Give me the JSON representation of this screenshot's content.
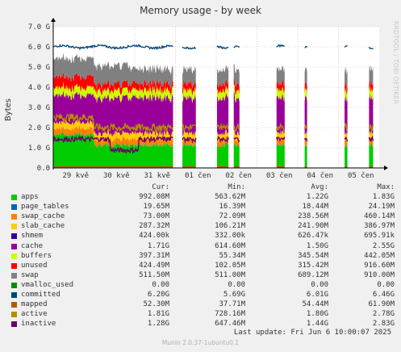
{
  "chart_data": {
    "type": "area",
    "title": "Memory usage - by week",
    "ylabel": "Bytes",
    "side_text": "RRDTOOL / TOBI OETIKER",
    "ylim": [
      0,
      7000000000
    ],
    "yticks": [
      "0.0",
      "1.0 G",
      "2.0 G",
      "3.0 G",
      "4.0 G",
      "5.0 G",
      "6.0 G",
      "7.0 G"
    ],
    "xticks": [
      "29 kvě",
      "30 kvě",
      "31 kvě",
      "01 čen",
      "02 čen",
      "03 čen",
      "04 čen",
      "05 čen"
    ],
    "x_range_days": [
      0,
      8
    ],
    "data_intervals_days": [
      [
        0,
        2.94
      ],
      [
        3.17,
        3.5
      ],
      [
        4.02,
        4.3
      ],
      [
        4.43,
        4.57
      ],
      [
        5.48,
        5.68
      ],
      [
        6.17,
        6.23
      ],
      [
        7.15,
        7.22
      ],
      [
        7.75,
        7.85
      ]
    ],
    "series": [
      {
        "name": "apps",
        "color": "#00cc00",
        "avg": 1.22
      },
      {
        "name": "page_tables",
        "color": "#0066b3",
        "avg": 0.018
      },
      {
        "name": "swap_cache",
        "color": "#ff8000",
        "avg": 0.239
      },
      {
        "name": "slab_cache",
        "color": "#ffcc00",
        "avg": 0.242
      },
      {
        "name": "shmem",
        "color": "#330099",
        "avg": 0.0006
      },
      {
        "name": "cache",
        "color": "#990099",
        "avg": 1.5
      },
      {
        "name": "buffers",
        "color": "#ccff00",
        "avg": 0.346
      },
      {
        "name": "unused",
        "color": "#ff0000",
        "avg": 0.315
      },
      {
        "name": "swap",
        "color": "#808080",
        "avg": 0.689
      },
      {
        "name": "vmalloc_used",
        "color": "#008f00",
        "avg": 0
      },
      {
        "name": "committed",
        "color": "#00487d",
        "avg": 6.01
      },
      {
        "name": "mapped",
        "color": "#b35a00",
        "avg": 0.054
      },
      {
        "name": "active",
        "color": "#b38f00",
        "avg": 1.8
      },
      {
        "name": "inactive",
        "color": "#6b006b",
        "avg": 1.44
      }
    ]
  },
  "legend": {
    "headers": [
      "Cur:",
      "Min:",
      "Avg:",
      "Max:"
    ],
    "rows": [
      {
        "name": "apps",
        "color": "#00cc00",
        "cur": "992.08M",
        "min": "563.62M",
        "avg": "1.22G",
        "max": "1.83G"
      },
      {
        "name": "page_tables",
        "color": "#0066b3",
        "cur": "19.65M",
        "min": "16.39M",
        "avg": "18.44M",
        "max": "24.19M"
      },
      {
        "name": "swap_cache",
        "color": "#ff8000",
        "cur": "73.00M",
        "min": "72.09M",
        "avg": "238.56M",
        "max": "460.14M"
      },
      {
        "name": "slab_cache",
        "color": "#ffcc00",
        "cur": "287.32M",
        "min": "106.21M",
        "avg": "241.90M",
        "max": "386.97M"
      },
      {
        "name": "shmem",
        "color": "#330099",
        "cur": "424.00k",
        "min": "332.00k",
        "avg": "626.47k",
        "max": "695.91k"
      },
      {
        "name": "cache",
        "color": "#990099",
        "cur": "1.71G",
        "min": "614.60M",
        "avg": "1.50G",
        "max": "2.55G"
      },
      {
        "name": "buffers",
        "color": "#ccff00",
        "cur": "397.31M",
        "min": "55.34M",
        "avg": "345.54M",
        "max": "442.05M"
      },
      {
        "name": "unused",
        "color": "#ff0000",
        "cur": "424.49M",
        "min": "102.05M",
        "avg": "315.42M",
        "max": "916.60M"
      },
      {
        "name": "swap",
        "color": "#808080",
        "cur": "511.50M",
        "min": "511.00M",
        "avg": "689.12M",
        "max": "910.00M"
      },
      {
        "name": "vmalloc_used",
        "color": "#008f00",
        "cur": "0.00",
        "min": "0.00",
        "avg": "0.00",
        "max": "0.00"
      },
      {
        "name": "committed",
        "color": "#00487d",
        "cur": "6.20G",
        "min": "5.69G",
        "avg": "6.01G",
        "max": "6.46G"
      },
      {
        "name": "mapped",
        "color": "#b35a00",
        "cur": "52.30M",
        "min": "37.71M",
        "avg": "54.44M",
        "max": "61.90M"
      },
      {
        "name": "active",
        "color": "#b38f00",
        "cur": "1.81G",
        "min": "728.16M",
        "avg": "1.80G",
        "max": "2.78G"
      },
      {
        "name": "inactive",
        "color": "#6b006b",
        "cur": "1.28G",
        "min": "647.46M",
        "avg": "1.44G",
        "max": "2.83G"
      }
    ]
  },
  "last_update": "Last update: Fri Jun  6 10:00:07 2025",
  "footer": "Munin 2.0.37-1ubuntu0.1"
}
